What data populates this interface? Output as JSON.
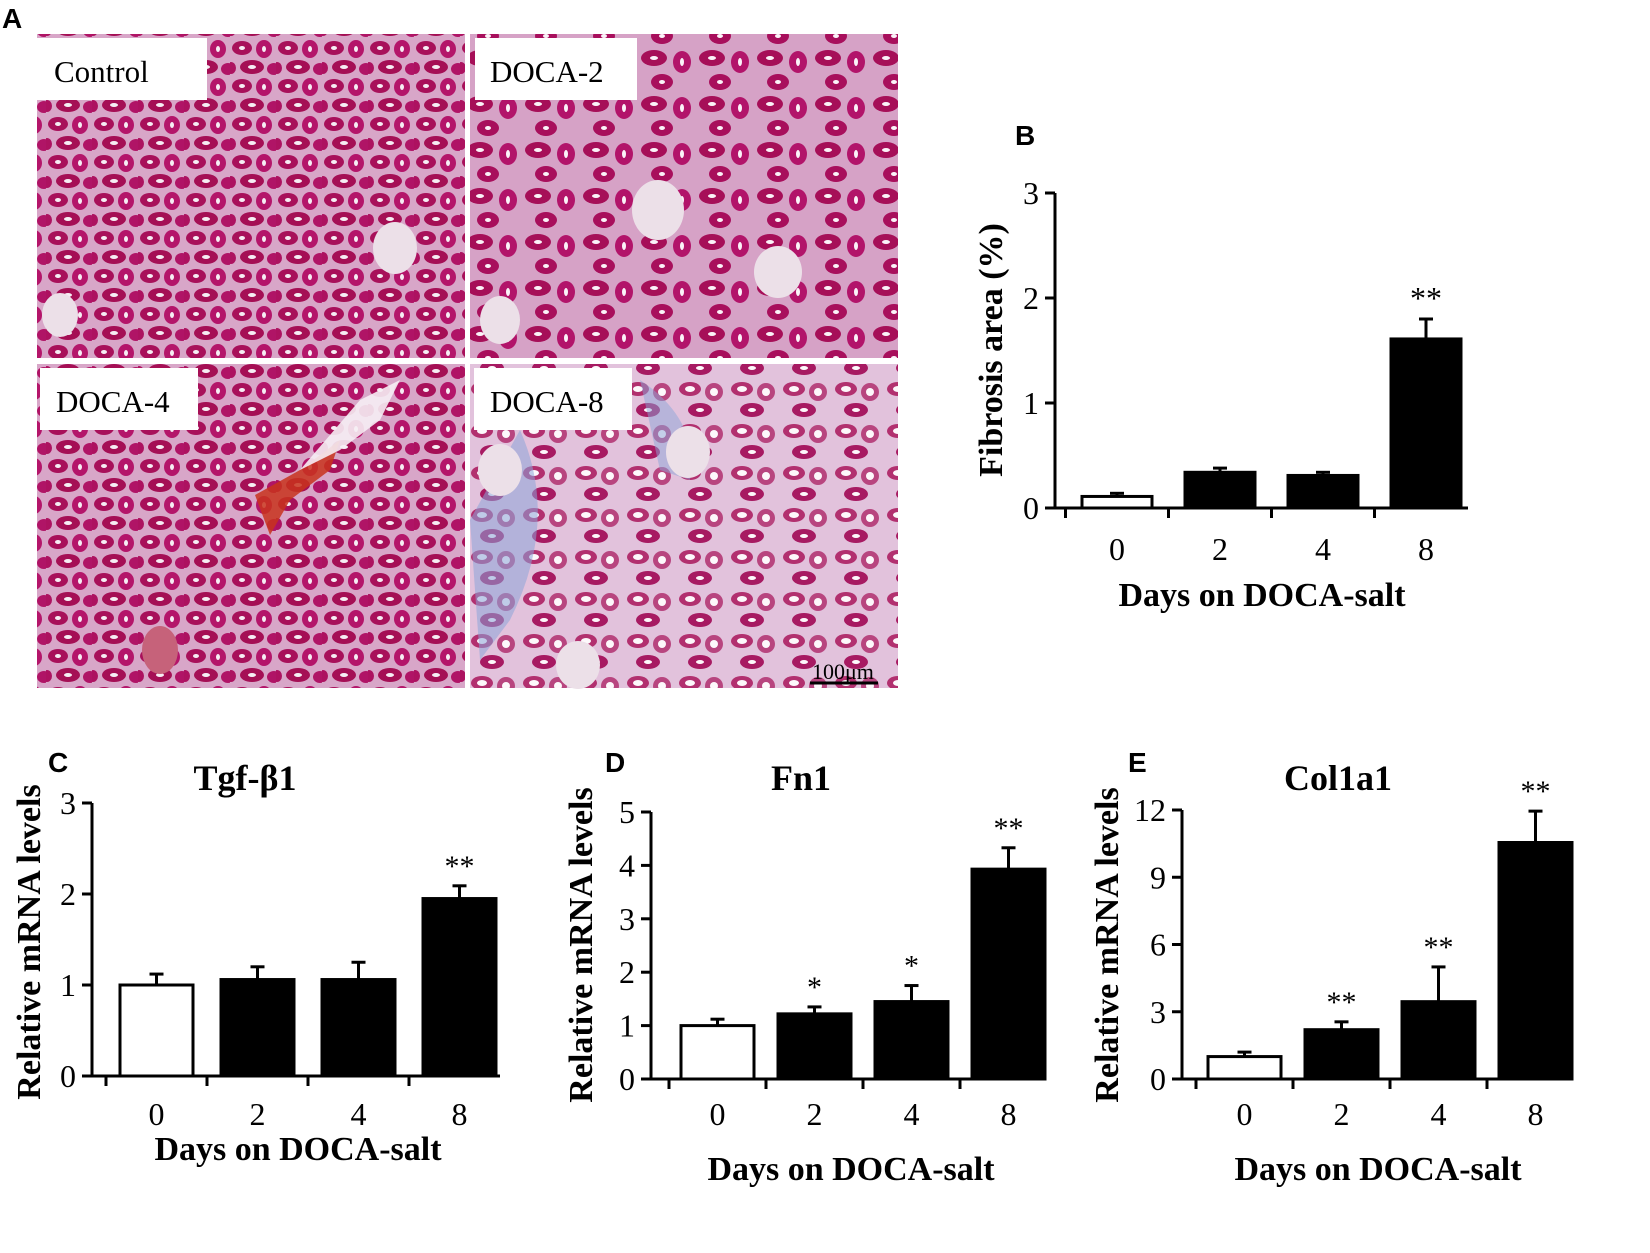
{
  "panel_letters": {
    "a": "A",
    "b": "B",
    "c": "C",
    "d": "D",
    "e": "E"
  },
  "histology": {
    "panels": [
      {
        "label": "Control",
        "tone": "#c2196b"
      },
      {
        "label": "DOCA-2",
        "tone": "#c0206e"
      },
      {
        "label": "DOCA-4",
        "tone": "#b8165e"
      },
      {
        "label": "DOCA-8",
        "tone": "#b64a8a"
      }
    ],
    "scale_bar_label": "100μm",
    "colors": {
      "tissue_dark": "#a8105a",
      "tissue_light": "#d8a6c8",
      "lumen": "#f6eef4",
      "collagen": "#8ca6d8",
      "hemorrhage": "#c8321c"
    }
  },
  "chart_data": [
    {
      "type": "bar",
      "id": "B",
      "title": "",
      "categories": [
        "0",
        "2",
        "4",
        "8"
      ],
      "values": [
        0.11,
        0.34,
        0.31,
        1.61
      ],
      "errors": [
        0.03,
        0.04,
        0.03,
        0.19
      ],
      "significance": [
        "",
        "",
        "",
        "**"
      ],
      "ylim": [
        0,
        3
      ],
      "yticks": [
        "0",
        "1",
        "2",
        "3"
      ],
      "xlabel": "Days on DOCA-salt",
      "ylabel": "Fibrosis area (%)",
      "bar_colors": [
        "#ffffff",
        "#000000",
        "#000000",
        "#000000"
      ]
    },
    {
      "type": "bar",
      "id": "C",
      "title": "Tgf-β1",
      "categories": [
        "0",
        "2",
        "4",
        "8"
      ],
      "values": [
        1.0,
        1.06,
        1.06,
        1.95
      ],
      "errors": [
        0.12,
        0.14,
        0.19,
        0.14
      ],
      "significance": [
        "",
        "",
        "",
        "**"
      ],
      "ylim": [
        0,
        3
      ],
      "yticks": [
        "0",
        "1",
        "2",
        "3"
      ],
      "xlabel": "Days on DOCA-salt",
      "ylabel": "Relative mRNA levels",
      "bar_colors": [
        "#ffffff",
        "#000000",
        "#000000",
        "#000000"
      ]
    },
    {
      "type": "bar",
      "id": "D",
      "title": "Fn1",
      "categories": [
        "0",
        "2",
        "4",
        "8"
      ],
      "values": [
        1.0,
        1.22,
        1.45,
        3.93
      ],
      "errors": [
        0.12,
        0.13,
        0.3,
        0.4
      ],
      "significance": [
        "",
        "*",
        "*",
        "**"
      ],
      "ylim": [
        0,
        5
      ],
      "yticks": [
        "0",
        "1",
        "2",
        "3",
        "4",
        "5"
      ],
      "xlabel": "Days on DOCA-salt",
      "ylabel": "Relative mRNA levels",
      "bar_colors": [
        "#ffffff",
        "#000000",
        "#000000",
        "#000000"
      ]
    },
    {
      "type": "bar",
      "id": "E",
      "title": "Col1a1",
      "categories": [
        "0",
        "2",
        "4",
        "8"
      ],
      "values": [
        1.0,
        2.2,
        3.45,
        10.55
      ],
      "errors": [
        0.2,
        0.35,
        1.55,
        1.4
      ],
      "significance": [
        "",
        "**",
        "**",
        "**"
      ],
      "ylim": [
        0,
        12
      ],
      "yticks": [
        "0",
        "3",
        "6",
        "9",
        "12"
      ],
      "xlabel": "Days on DOCA-salt",
      "ylabel": "Relative mRNA levels",
      "bar_colors": [
        "#ffffff",
        "#000000",
        "#000000",
        "#000000"
      ]
    }
  ]
}
